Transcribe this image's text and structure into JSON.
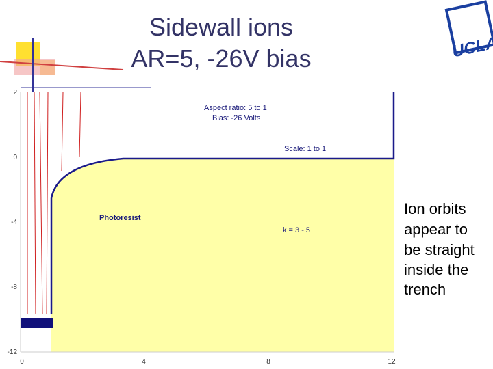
{
  "header": {
    "title": [
      "Sidewall ions",
      "AR=5, -26V bias"
    ],
    "logo": "UCLA"
  },
  "plot": {
    "annotations": [
      "Aspect ratio: 5 to 1",
      "Bias: -26 Volts",
      "Scale: 1 to 1",
      "Photoresist",
      "k = 3 - 5"
    ],
    "y_tick_labels": [
      "2",
      "0",
      "-4",
      "-8",
      "-12"
    ],
    "x_tick_labels": [
      "0",
      "4",
      "8",
      "12"
    ]
  },
  "note": {
    "lines": [
      "Ion orbits",
      "appear to",
      "be straight",
      "inside the",
      "trench"
    ]
  }
}
